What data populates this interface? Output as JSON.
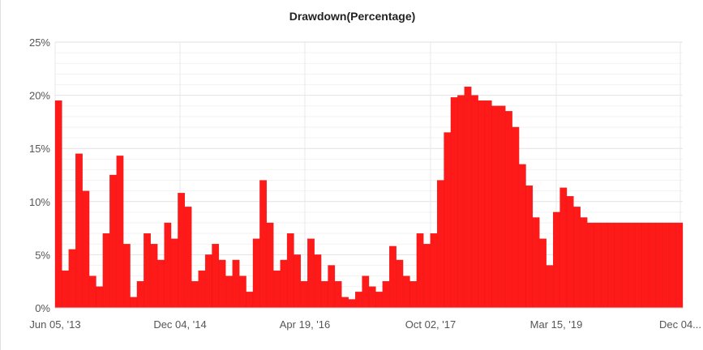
{
  "chart_data": {
    "type": "bar",
    "title": "Drawdown(Percentage)",
    "xlabel": "",
    "ylabel": "",
    "ylim": [
      0,
      25
    ],
    "y_ticks": [
      "0%",
      "5%",
      "10%",
      "15%",
      "20%",
      "25%"
    ],
    "x_ticks": [
      "Jun 05, '13",
      "Dec 04, '14",
      "Apr 19, '16",
      "Oct 02, '17",
      "Mar 15, '19",
      "Dec 04..."
    ],
    "grid": true,
    "legend": "none",
    "bar_color": "#ff1a1a",
    "series": [
      {
        "x": [
          "2013-06",
          "2013-07",
          "2013-08",
          "2013-09",
          "2013-10",
          "2013-11",
          "2013-12",
          "2014-01",
          "2014-02",
          "2014-03",
          "2014-04",
          "2014-05",
          "2014-06",
          "2014-07",
          "2014-08",
          "2014-09",
          "2014-10",
          "2014-11",
          "2014-12",
          "2015-01",
          "2015-02",
          "2015-03",
          "2015-04",
          "2015-05",
          "2015-06",
          "2015-07",
          "2015-08",
          "2015-09",
          "2015-10",
          "2015-11",
          "2015-12",
          "2016-01",
          "2016-02",
          "2016-03",
          "2016-04",
          "2016-05",
          "2016-06",
          "2016-07",
          "2016-08",
          "2016-09",
          "2016-10",
          "2016-11",
          "2016-12",
          "2017-01",
          "2017-02",
          "2017-03",
          "2017-04",
          "2017-05",
          "2017-06",
          "2017-07",
          "2017-08",
          "2017-09",
          "2017-10",
          "2017-11",
          "2017-12",
          "2018-01",
          "2018-02",
          "2018-03",
          "2018-04",
          "2018-05",
          "2018-06",
          "2018-07",
          "2018-08",
          "2018-09",
          "2018-10",
          "2018-11",
          "2018-12",
          "2019-01",
          "2019-02",
          "2019-03",
          "2019-04",
          "2019-05",
          "2019-06",
          "2019-07",
          "2019-08",
          "2019-09",
          "2019-10",
          "2019-11",
          "2019-12",
          "2020-01",
          "2020-02",
          "2020-03",
          "2020-04",
          "2020-05",
          "2020-06",
          "2020-07",
          "2020-08",
          "2020-09",
          "2020-10",
          "2020-11",
          "2020-12",
          "2021-01"
        ],
        "values": [
          19.5,
          3.5,
          5.5,
          14.5,
          11.0,
          3.0,
          2.0,
          7.0,
          12.5,
          14.3,
          6.0,
          1.0,
          2.5,
          7.0,
          6.0,
          4.5,
          8.0,
          6.5,
          10.8,
          9.5,
          2.5,
          3.5,
          5.0,
          6.0,
          4.5,
          3.0,
          4.5,
          3.0,
          1.5,
          6.5,
          12.0,
          8.0,
          3.5,
          4.5,
          7.0,
          5.0,
          2.5,
          6.5,
          5.0,
          2.5,
          4.0,
          2.5,
          1.0,
          0.8,
          1.5,
          3.0,
          2.0,
          1.5,
          2.5,
          5.8,
          4.5,
          3.0,
          2.5,
          7.0,
          6.0,
          7.0,
          12.0,
          16.5,
          19.8,
          20.0,
          20.8,
          20.0,
          19.5,
          19.5,
          19.0,
          19.0,
          18.5,
          17.0,
          13.5,
          11.5,
          8.5,
          6.5,
          4.0,
          9.0,
          11.3,
          10.5,
          9.5,
          8.5,
          8.0,
          8.0,
          8.0,
          8.0,
          8.0,
          8.0,
          8.0,
          8.0,
          8.0,
          8.0,
          8.0,
          8.0,
          8.0,
          8.0
        ],
        "name": ""
      }
    ]
  }
}
